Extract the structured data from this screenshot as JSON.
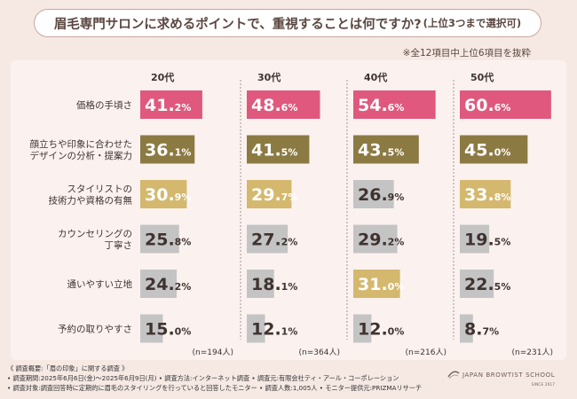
{
  "header": {
    "title": "眉毛専門サロンに求めるポイントで、重視することは何ですか?",
    "title_sub": "(上位3つまで選択可)",
    "note": "※全12項目中上位6項目を抜粋"
  },
  "chart_data": {
    "type": "bar",
    "title": "眉毛専門サロンに求めるポイントで、重視することは何ですか?(上位3つまで選択可)",
    "categories": [
      [
        "価格の手頃さ"
      ],
      [
        "顔立ちや印象に合わせた",
        "デザインの分析・提案力"
      ],
      [
        "スタイリストの",
        "技術力や資格の有無"
      ],
      [
        "カウンセリングの",
        "丁寧さ"
      ],
      [
        "通いやすい立地"
      ],
      [
        "予約の取りやすさ"
      ]
    ],
    "series": [
      {
        "name": "20代",
        "n": "(n=194人)",
        "values": [
          41.2,
          36.1,
          30.9,
          25.8,
          24.2,
          15.0
        ],
        "highlight": [
          1,
          2,
          3,
          0,
          0,
          0
        ]
      },
      {
        "name": "30代",
        "n": "(n=364人)",
        "values": [
          48.6,
          41.5,
          29.7,
          27.2,
          18.1,
          12.1
        ],
        "highlight": [
          1,
          2,
          3,
          0,
          0,
          0
        ]
      },
      {
        "name": "40代",
        "n": "(n=216人)",
        "values": [
          54.6,
          43.5,
          26.9,
          29.2,
          31.0,
          12.0
        ],
        "highlight": [
          1,
          2,
          0,
          0,
          3,
          0
        ]
      },
      {
        "name": "50代",
        "n": "(n=231人)",
        "values": [
          60.6,
          45.0,
          33.8,
          19.5,
          22.5,
          8.7
        ],
        "highlight": [
          1,
          2,
          3,
          0,
          0,
          0
        ]
      }
    ],
    "value_suffix": "%",
    "xlim": [
      0,
      66
    ],
    "colors": {
      "rank1": "#e0587d",
      "rank2": "#8c7a43",
      "rank3": "#d4b86e",
      "other": "#c4c4c4"
    }
  },
  "footer": {
    "line1": "《 調査概要:「眉の印象」に関する調査 》",
    "line2": "• 調査期間:2025年6月6日(金)〜2025年6月9日(月)  • 調査方法:インターネット調査  • 調査元:有限会社ティ・アール・コーポレーション",
    "line3": "• 調査対象:調査回答時に定期的に眉毛のスタイリングを行っていると回答したモニター  • 調査人数:1,005人  • モニター提供元:PRIZMAリサーチ"
  },
  "logo": {
    "name": "JAPAN BROWTIST SCHOOL",
    "sub": "SINCE 2017"
  }
}
